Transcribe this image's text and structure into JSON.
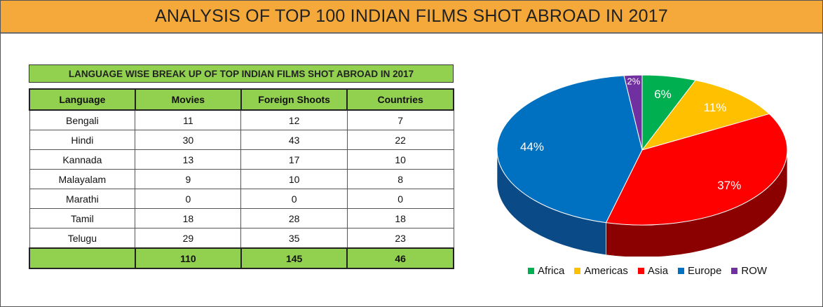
{
  "page": {
    "title": "ANALYSIS OF TOP 100 INDIAN FILMS SHOT ABROAD IN 2017"
  },
  "table": {
    "title": "LANGUAGE WISE BREAK UP OF TOP INDIAN FILMS SHOT ABROAD IN 2017",
    "headers": [
      "Language",
      "Movies",
      "Foreign Shoots",
      "Countries"
    ],
    "rows": [
      [
        "Bengali",
        "11",
        "12",
        "7"
      ],
      [
        "Hindi",
        "30",
        "43",
        "22"
      ],
      [
        "Kannada",
        "13",
        "17",
        "10"
      ],
      [
        "Malayalam",
        "9",
        "10",
        "8"
      ],
      [
        "Marathi",
        "0",
        "0",
        "0"
      ],
      [
        "Tamil",
        "18",
        "28",
        "18"
      ],
      [
        "Telugu",
        "29",
        "35",
        "23"
      ]
    ],
    "totals": [
      "",
      "110",
      "145",
      "46"
    ]
  },
  "chart_data": {
    "type": "pie",
    "style": "3d",
    "categories": [
      "Africa",
      "Americas",
      "Asia",
      "Europe",
      "ROW"
    ],
    "values": [
      6,
      11,
      37,
      44,
      2
    ],
    "labels": [
      "6%",
      "11%",
      "37%",
      "44%",
      "2%"
    ],
    "colors": [
      "#00b050",
      "#ffc000",
      "#ff0000",
      "#0070c0",
      "#7030a0"
    ],
    "side_colors": [
      "#00703a",
      "#b08600",
      "#8b0000",
      "#0a4a86",
      "#4a1f70"
    ],
    "legend_position": "bottom"
  }
}
